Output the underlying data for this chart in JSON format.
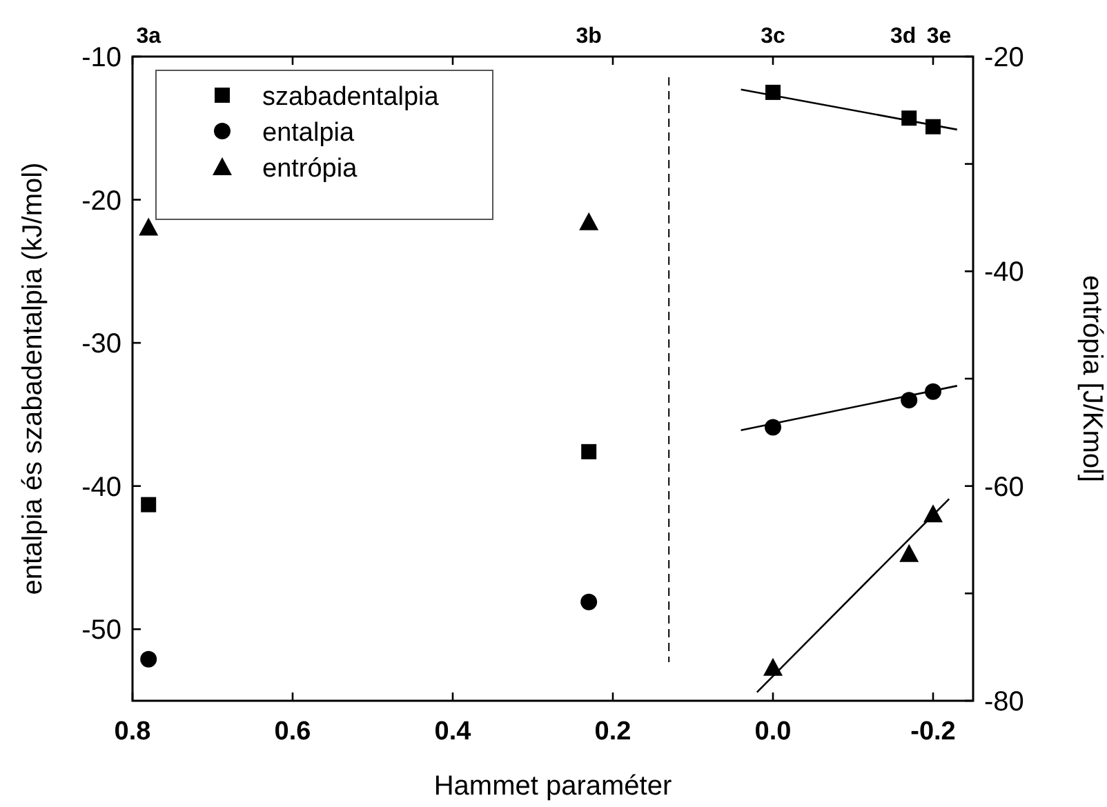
{
  "chart_data": {
    "type": "scatter",
    "xlabel": "Hammet paraméter",
    "ylabel": "entalpia és szabadentalpia (kJ/mol)",
    "y2label": "entrópia [J/Kmol]",
    "xlim": [
      0.8,
      -0.25
    ],
    "xticks": [
      {
        "value": 0.8,
        "label": "0.8"
      },
      {
        "value": 0.6,
        "label": "0.6"
      },
      {
        "value": 0.4,
        "label": "0.4"
      },
      {
        "value": 0.2,
        "label": "0.2"
      },
      {
        "value": 0,
        "label": "0.0"
      },
      {
        "value": -0.2,
        "label": "-0.2"
      }
    ],
    "annotations": [
      "3a",
      "3b",
      "3c",
      "3d",
      "3e"
    ],
    "ylim": [
      -55,
      -10
    ],
    "yticks": [
      -10,
      -20,
      -30,
      -40,
      -50
    ],
    "y2lim": [
      -80,
      -20
    ],
    "y2ticks": [
      -20,
      {
        "value": -30,
        "label": null
      },
      -40,
      {
        "value": -50,
        "label": null
      },
      -60,
      {
        "value": -70,
        "label": null
      },
      -80
    ],
    "legend": "top left",
    "grid": false,
    "ref_lines": [
      {
        "axis": "x",
        "value": 0.13,
        "line_style": "dashed",
        "color": "#000000"
      }
    ],
    "series": [
      {
        "name": "szabadentalpia",
        "marker": "square",
        "color": "#000000",
        "x": [
          0.78,
          0.23,
          0,
          -0.17,
          -0.2
        ],
        "values": [
          -41.3,
          -37.6,
          -12.5,
          -14.3,
          -14.9
        ]
      },
      {
        "name": "entalpia",
        "marker": "circle",
        "color": "#000000",
        "x": [
          0.78,
          0.23,
          0,
          -0.17,
          -0.2
        ],
        "values": [
          -52.1,
          -48.1,
          -35.9,
          -34.0,
          -33.4
        ]
      },
      {
        "name": "entrópia",
        "marker": "triangle",
        "axis": "y2",
        "color": "#000000",
        "x": [
          0.78,
          0.23,
          0,
          -0.17,
          -0.2
        ],
        "values": [
          -35.9,
          -35.4,
          -76.9,
          -66.3,
          -62.6
        ]
      },
      {
        "type": "line",
        "color": "#000000",
        "x": [
          0.04,
          -0.23
        ],
        "values": [
          -12.3,
          -15.1
        ]
      },
      {
        "type": "line",
        "color": "#000000",
        "x": [
          0.04,
          -0.23
        ],
        "values": [
          -36.1,
          -33.0
        ]
      },
      {
        "type": "line",
        "axis": "y2",
        "color": "#000000",
        "x": [
          0.02,
          -0.22
        ],
        "values": [
          -79.2,
          -61.2
        ]
      }
    ]
  }
}
